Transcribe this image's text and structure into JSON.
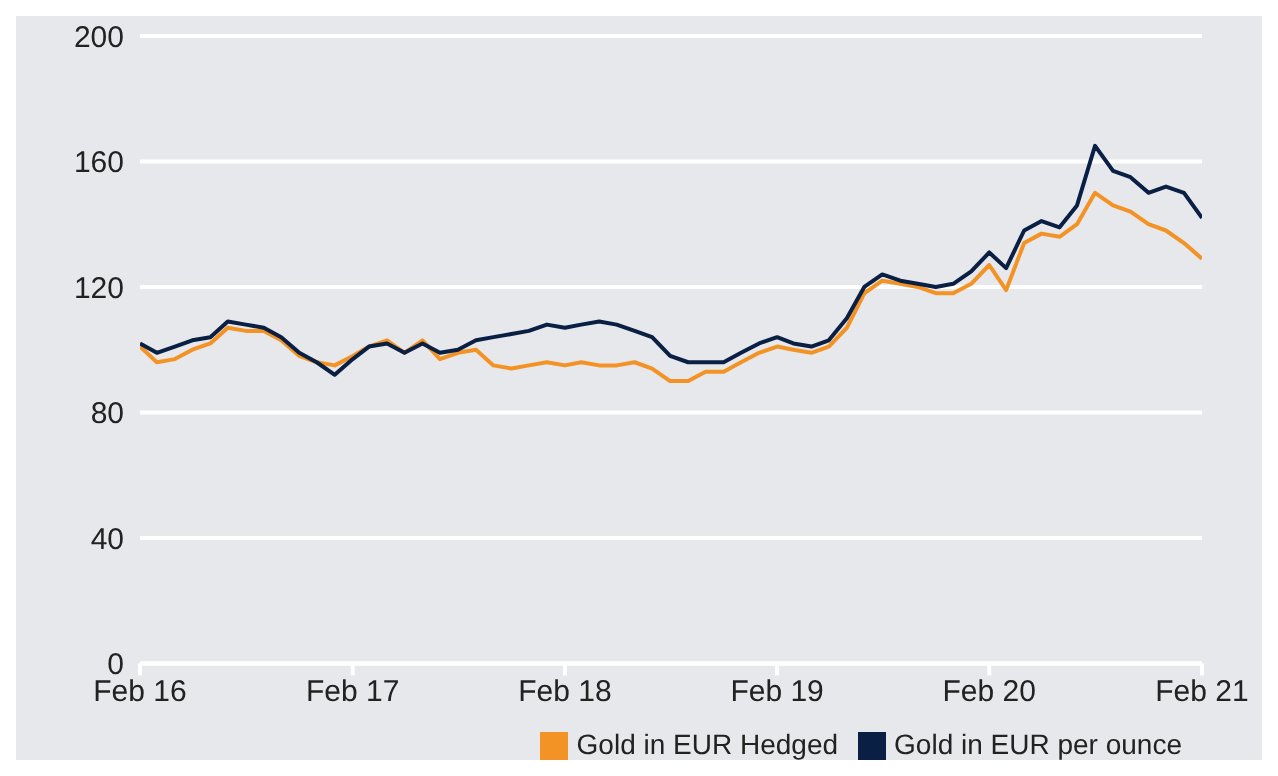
{
  "chart_data": {
    "type": "line",
    "x": [
      "2016-02",
      "2016-03",
      "2016-04",
      "2016-05",
      "2016-06",
      "2016-07",
      "2016-08",
      "2016-09",
      "2016-10",
      "2016-11",
      "2016-12",
      "2017-01",
      "2017-02",
      "2017-03",
      "2017-04",
      "2017-05",
      "2017-06",
      "2017-07",
      "2017-08",
      "2017-09",
      "2017-10",
      "2017-11",
      "2017-12",
      "2018-01",
      "2018-02",
      "2018-03",
      "2018-04",
      "2018-05",
      "2018-06",
      "2018-07",
      "2018-08",
      "2018-09",
      "2018-10",
      "2018-11",
      "2018-12",
      "2019-01",
      "2019-02",
      "2019-03",
      "2019-04",
      "2019-05",
      "2019-06",
      "2019-07",
      "2019-08",
      "2019-09",
      "2019-10",
      "2019-11",
      "2019-12",
      "2020-01",
      "2020-02",
      "2020-03",
      "2020-04",
      "2020-05",
      "2020-06",
      "2020-07",
      "2020-08",
      "2020-09",
      "2020-10",
      "2020-11",
      "2020-12",
      "2021-01",
      "2021-02"
    ],
    "series": [
      {
        "name": "Gold in EUR Hedged",
        "color": "#f39325",
        "values": [
          101,
          96,
          97,
          100,
          102,
          107,
          106,
          106,
          103,
          98,
          96,
          95,
          98,
          101,
          103,
          99,
          103,
          97,
          99,
          100,
          95,
          94,
          95,
          96,
          95,
          96,
          95,
          95,
          96,
          94,
          90,
          90,
          93,
          93,
          96,
          99,
          101,
          100,
          99,
          101,
          107,
          118,
          122,
          121,
          120,
          118,
          118,
          121,
          127,
          119,
          134,
          137,
          136,
          140,
          150,
          146,
          144,
          140,
          138,
          134,
          129
        ]
      },
      {
        "name": "Gold in EUR per ounce",
        "color": "#0a1f44",
        "values": [
          102,
          99,
          101,
          103,
          104,
          109,
          108,
          107,
          104,
          99,
          96,
          92,
          97,
          101,
          102,
          99,
          102,
          99,
          100,
          103,
          104,
          105,
          106,
          108,
          107,
          108,
          109,
          108,
          106,
          104,
          98,
          96,
          96,
          96,
          99,
          102,
          104,
          102,
          101,
          103,
          110,
          120,
          124,
          122,
          121,
          120,
          121,
          125,
          131,
          126,
          138,
          141,
          139,
          146,
          165,
          157,
          155,
          150,
          152,
          150,
          142
        ]
      }
    ],
    "xlim": [
      "2016-02",
      "2021-02"
    ],
    "xticks": [
      {
        "value": "2016-02",
        "label": "Feb 16"
      },
      {
        "value": "2017-02",
        "label": "Feb 17"
      },
      {
        "value": "2018-02",
        "label": "Feb 18"
      },
      {
        "value": "2019-02",
        "label": "Feb 19"
      },
      {
        "value": "2020-02",
        "label": "Feb 20"
      },
      {
        "value": "2021-02",
        "label": "Feb 21"
      }
    ],
    "ylim": [
      0,
      200
    ],
    "yticks": [
      0,
      40,
      80,
      120,
      160,
      200
    ],
    "grid": "y",
    "legend": "bottom right",
    "marker": "none",
    "line_style": "solid"
  }
}
